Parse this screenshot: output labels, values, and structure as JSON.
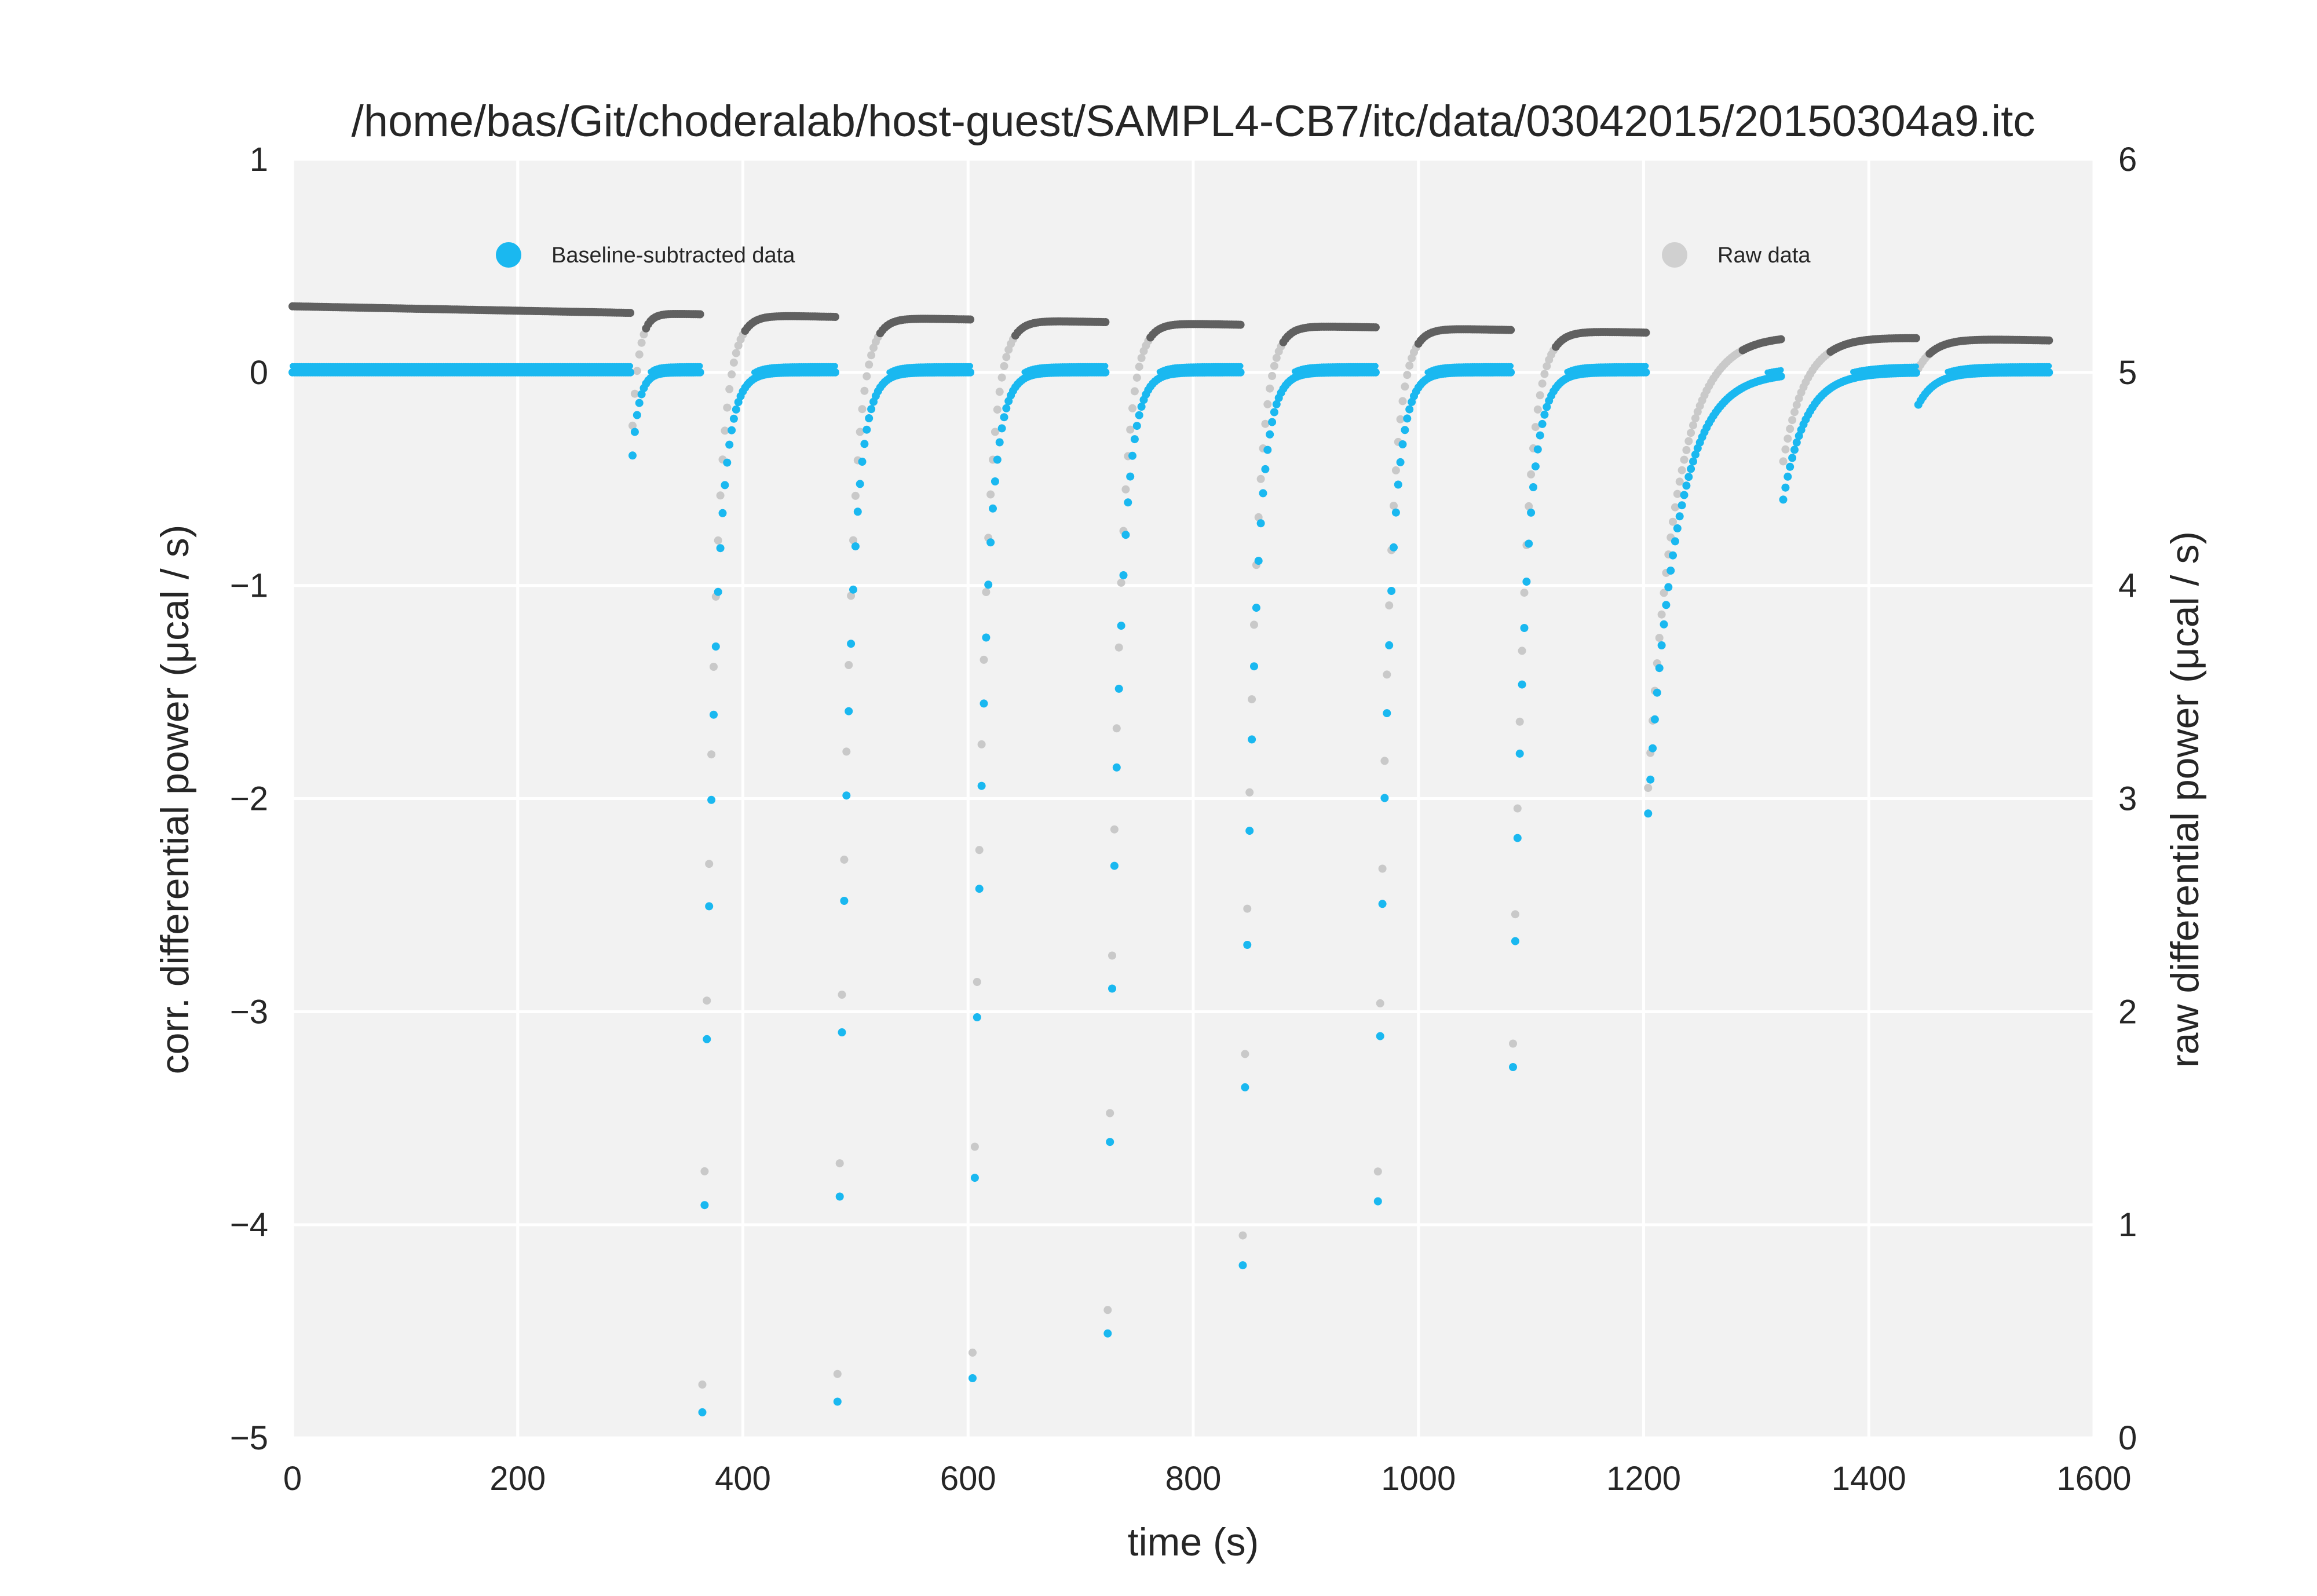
{
  "chart_data": {
    "type": "scatter",
    "title": "/home/bas/Git/choderalab/host-guest/SAMPL4-CB7/itc/data/03042015/20150304a9.itc",
    "xlabel": "time (s)",
    "ylabel_left": "corr. differential power (μcal / s)",
    "ylabel_right": "raw differential power (μcal / s)",
    "xlim": [
      0,
      1600
    ],
    "ylim_left": [
      -5,
      1
    ],
    "ylim_right": [
      0,
      6
    ],
    "x_ticks": [
      "0",
      "200",
      "400",
      "600",
      "800",
      "1000",
      "1200",
      "1400",
      "1600"
    ],
    "y_left_ticks": [
      "1",
      "0",
      "−1",
      "−2",
      "−3",
      "−4",
      "−5"
    ],
    "y_right_ticks": [
      "6",
      "5",
      "4",
      "3",
      "2",
      "1",
      "0"
    ],
    "grid": true,
    "legend_placement": "top",
    "colors": {
      "corrected": "#1ab8f0",
      "raw": "#c9c9c9",
      "raw_dense": "#606060",
      "background": "#f2f2f2",
      "grid": "#ffffff"
    },
    "series": [
      {
        "name": "Baseline-subtracted data",
        "axis": "left",
        "baseline": 0,
        "injections": [
          {
            "t": 300,
            "min": -0.39,
            "tau": 6
          },
          {
            "t": 362,
            "min": -4.88,
            "tau": 9
          },
          {
            "t": 482,
            "min": -4.83,
            "tau": 9
          },
          {
            "t": 602,
            "min": -4.72,
            "tau": 9
          },
          {
            "t": 722,
            "min": -4.51,
            "tau": 9
          },
          {
            "t": 842,
            "min": -4.19,
            "tau": 9
          },
          {
            "t": 962,
            "min": -3.89,
            "tau": 9
          },
          {
            "t": 1082,
            "min": -3.26,
            "tau": 10
          },
          {
            "t": 1202,
            "min": -2.07,
            "tau": 25
          },
          {
            "t": 1322,
            "min": -0.58,
            "tau": 20
          },
          {
            "t": 1442,
            "min": -0.15,
            "tau": 15
          }
        ]
      },
      {
        "name": "Raw data",
        "axis": "right",
        "baseline_start": 5.31,
        "baseline_end": 5.15,
        "injections": [
          {
            "t": 300,
            "min": 4.75,
            "tau": 6
          },
          {
            "t": 362,
            "min": 0.25,
            "tau": 9
          },
          {
            "t": 482,
            "min": 0.3,
            "tau": 9
          },
          {
            "t": 602,
            "min": 0.4,
            "tau": 9
          },
          {
            "t": 722,
            "min": 0.6,
            "tau": 9
          },
          {
            "t": 842,
            "min": 0.95,
            "tau": 9
          },
          {
            "t": 962,
            "min": 1.25,
            "tau": 9
          },
          {
            "t": 1082,
            "min": 1.85,
            "tau": 10
          },
          {
            "t": 1202,
            "min": 3.05,
            "tau": 25
          },
          {
            "t": 1322,
            "min": 4.6,
            "tau": 20
          },
          {
            "t": 1442,
            "min": 5.02,
            "tau": 15
          }
        ]
      }
    ]
  }
}
